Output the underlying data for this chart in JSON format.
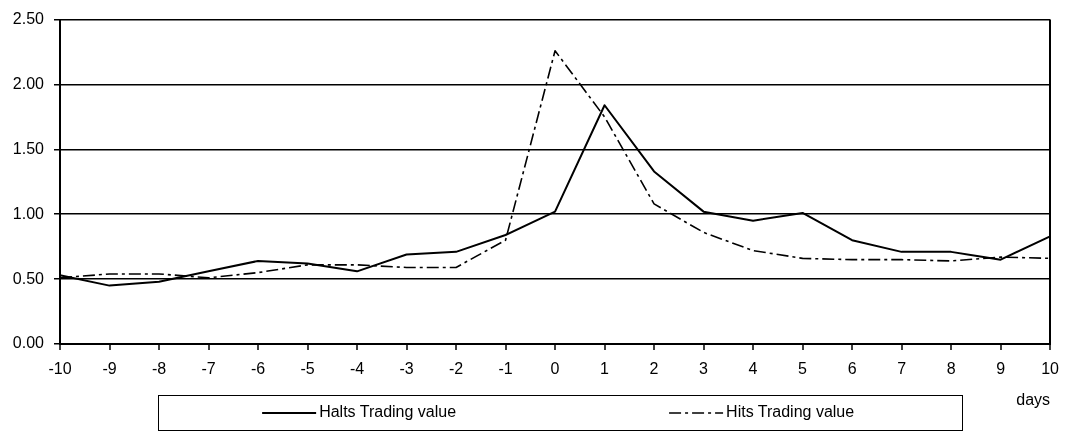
{
  "chart_data": {
    "type": "line",
    "xlabel": "days",
    "x": [
      -10,
      -9,
      -8,
      -7,
      -6,
      -5,
      -4,
      -3,
      -2,
      -1,
      0,
      1,
      2,
      3,
      4,
      5,
      6,
      7,
      8,
      9,
      10
    ],
    "series": [
      {
        "name": "Halts Trading value",
        "color": "#000000",
        "line_style": "solid",
        "values": [
          0.53,
          0.45,
          0.48,
          0.56,
          0.64,
          0.62,
          0.56,
          0.69,
          0.71,
          0.84,
          1.02,
          1.84,
          1.33,
          1.02,
          0.95,
          1.01,
          0.8,
          0.71,
          0.71,
          0.65,
          0.83
        ]
      },
      {
        "name": "Hits Trading value",
        "color": "#000000",
        "line_style": "dashed",
        "values": [
          0.51,
          0.54,
          0.54,
          0.51,
          0.55,
          0.61,
          0.61,
          0.59,
          0.59,
          0.8,
          2.26,
          1.75,
          1.08,
          0.86,
          0.72,
          0.66,
          0.65,
          0.65,
          0.64,
          0.67,
          0.66
        ]
      }
    ],
    "xlim": [
      -10,
      10
    ],
    "xticks": [
      -10,
      -9,
      -8,
      -7,
      -6,
      -5,
      -4,
      -3,
      -2,
      -1,
      0,
      1,
      2,
      3,
      4,
      5,
      6,
      7,
      8,
      9,
      10
    ],
    "ylim": [
      0,
      2.5
    ],
    "yticks": [
      {
        "value": 0,
        "label": "0.00"
      },
      {
        "value": 0.5,
        "label": "0.50"
      },
      {
        "value": 1,
        "label": "1.00"
      },
      {
        "value": 1.5,
        "label": "1.50"
      },
      {
        "value": 2,
        "label": "2.00"
      },
      {
        "value": 2.5,
        "label": "2.50"
      }
    ],
    "grid": "y",
    "legend": "bottom",
    "marker": "none"
  }
}
